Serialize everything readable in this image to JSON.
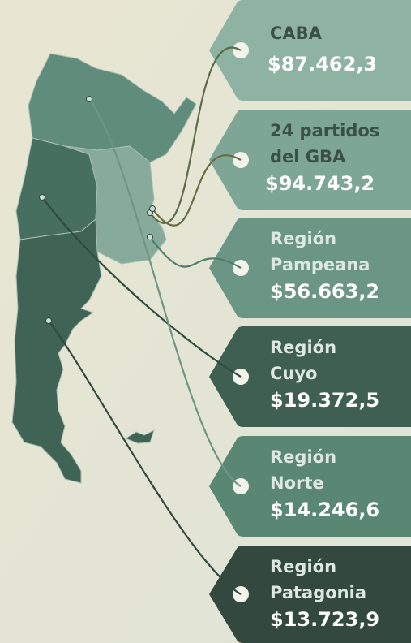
{
  "tags": [
    {
      "name": [
        "CABA"
      ],
      "value": "$87.462,3"
    },
    {
      "name": [
        "24 partidos",
        "del GBA"
      ],
      "value": "$94.743,2"
    },
    {
      "name": [
        "Región",
        "Pampeana"
      ],
      "value": "$56.663,2"
    },
    {
      "name": [
        "Región",
        "Cuyo"
      ],
      "value": "$19.372,5"
    },
    {
      "name": [
        "Región",
        "Norte"
      ],
      "value": "$14.246,6"
    },
    {
      "name": [
        "Región",
        "Patagonia"
      ],
      "value": "$13.723,9"
    }
  ]
}
